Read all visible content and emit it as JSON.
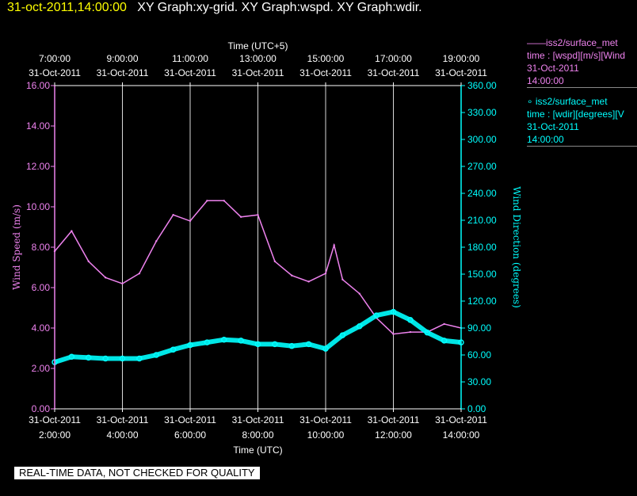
{
  "header": {
    "timestamp": "31-oct-2011,14:00:00",
    "graph_titles": "XY Graph:xy-grid.  XY Graph:wspd.  XY Graph:wdir."
  },
  "legend": [
    {
      "marker": "——",
      "name": "iss2/surface_met",
      "var": "time : [wspd][m/s][Wind",
      "date": "31-Oct-2011",
      "time": "14:00:00",
      "color": "#ee82ee"
    },
    {
      "marker": "∘",
      "name": "iss2/surface_met",
      "var": "time : [wdir][degrees][V",
      "date": "31-Oct-2011",
      "time": "14:00:00",
      "color": "#00ffff"
    }
  ],
  "footer": {
    "qc_notice": "REAL-TIME DATA, NOT CHECKED FOR QUALITY"
  },
  "colors": {
    "wspd": "#ee82ee",
    "wdir": "#00ffff",
    "grid": "#ffffff",
    "background": "#000000"
  },
  "chart_data": {
    "type": "line",
    "top_axis": {
      "title": "Time (UTC+5)",
      "tick_times": [
        "7:00:00",
        "9:00:00",
        "11:00:00",
        "13:00:00",
        "15:00:00",
        "17:00:00",
        "19:00:00"
      ],
      "tick_dates": [
        "31-Oct-2011",
        "31-Oct-2011",
        "31-Oct-2011",
        "31-Oct-2011",
        "31-Oct-2011",
        "31-Oct-2011",
        "31-Oct-2011"
      ]
    },
    "x_axis": {
      "title": "Time (UTC)",
      "range": [
        "2:00:00",
        "14:00:00"
      ],
      "tick_times": [
        "2:00:00",
        "4:00:00",
        "6:00:00",
        "8:00:00",
        "10:00:00",
        "12:00:00",
        "14:00:00"
      ],
      "tick_dates": [
        "31-Oct-2011",
        "31-Oct-2011",
        "31-Oct-2011",
        "31-Oct-2011",
        "31-Oct-2011",
        "31-Oct-2011",
        "31-Oct-2011"
      ]
    },
    "y_left": {
      "title": "Wind Speed (m/s)",
      "range": [
        0,
        16
      ],
      "ticks": [
        "0.00",
        "2.00",
        "4.00",
        "6.00",
        "8.00",
        "10.00",
        "12.00",
        "14.00",
        "16.00"
      ]
    },
    "y_right": {
      "title": "Wind Direction (degrees)",
      "range": [
        0,
        360
      ],
      "ticks": [
        "0.00",
        "30.00",
        "60.00",
        "90.00",
        "120.00",
        "150.00",
        "180.00",
        "210.00",
        "240.00",
        "270.00",
        "300.00",
        "330.00",
        "360.00"
      ]
    },
    "grid": "vertical lines at major x ticks",
    "series": [
      {
        "name": "iss2/surface_met wspd",
        "axis": "left",
        "style": "line",
        "x": [
          "2:00",
          "2:30",
          "3:00",
          "3:30",
          "4:00",
          "4:30",
          "5:00",
          "5:30",
          "6:00",
          "6:30",
          "7:00",
          "7:30",
          "8:00",
          "8:30",
          "9:00",
          "9:30",
          "10:00",
          "10:15",
          "10:30",
          "11:00",
          "11:30",
          "12:00",
          "12:30",
          "13:00",
          "13:30",
          "14:00"
        ],
        "values": [
          7.8,
          8.8,
          7.3,
          6.5,
          6.2,
          6.7,
          8.3,
          9.6,
          9.3,
          10.3,
          10.3,
          9.5,
          9.6,
          7.3,
          6.6,
          6.3,
          6.7,
          8.1,
          6.4,
          5.7,
          4.5,
          3.7,
          3.8,
          3.8,
          4.2,
          4.0
        ]
      },
      {
        "name": "iss2/surface_met wdir",
        "axis": "right",
        "style": "points",
        "x": [
          "2:00",
          "2:30",
          "3:00",
          "3:30",
          "4:00",
          "4:30",
          "5:00",
          "5:30",
          "6:00",
          "6:30",
          "7:00",
          "7:30",
          "8:00",
          "8:30",
          "9:00",
          "9:30",
          "10:00",
          "10:30",
          "11:00",
          "11:30",
          "12:00",
          "12:30",
          "13:00",
          "13:30",
          "14:00"
        ],
        "values": [
          52,
          58,
          57,
          56,
          56,
          56,
          60,
          66,
          71,
          74,
          77,
          76,
          72,
          72,
          70,
          72,
          67,
          82,
          92,
          104,
          108,
          99,
          85,
          76,
          74
        ]
      }
    ]
  }
}
